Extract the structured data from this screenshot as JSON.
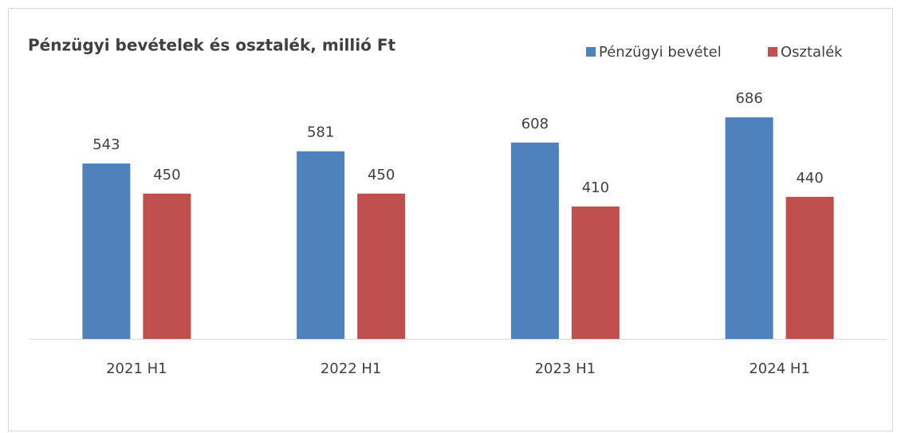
{
  "chart_data": {
    "type": "bar",
    "title": "Pénzügyi bevételek és osztalék, millió Ft",
    "categories": [
      "2021 H1",
      "2022 H1",
      "2023 H1",
      "2024 H1"
    ],
    "series": [
      {
        "name": "Pénzügyi bevétel",
        "color": "#4f81bd",
        "values": [
          543,
          581,
          608,
          686
        ]
      },
      {
        "name": "Osztalék",
        "color": "#c0504d",
        "values": [
          450,
          450,
          410,
          440
        ]
      }
    ],
    "ylim": [
      0,
      800
    ]
  }
}
